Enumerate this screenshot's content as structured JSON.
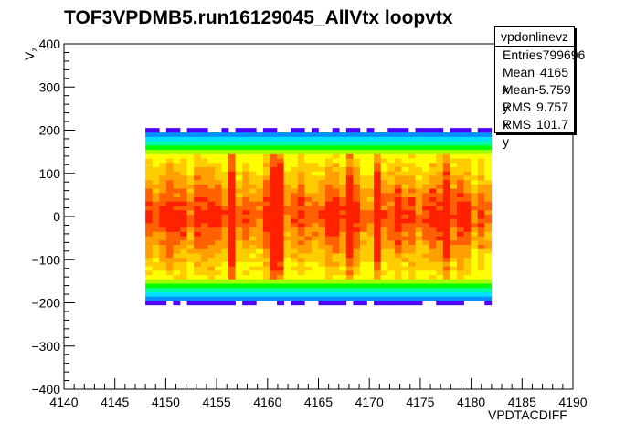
{
  "chart_data": {
    "type": "heatmap",
    "title": "TOF3VPDMB5.run16129045_AllVtx loopvtx",
    "xlabel": "VPDTACDIFF",
    "ylabel_main": "V",
    "ylabel_sub": "z",
    "xlim": [
      4140,
      4190
    ],
    "ylim": [
      -400,
      400
    ],
    "xticks": [
      "4140",
      "4145",
      "4150",
      "4155",
      "4160",
      "4165",
      "4170",
      "4175",
      "4180",
      "4185",
      "4190"
    ],
    "yticks": [
      "400",
      "300",
      "200",
      "100",
      "0",
      "−100",
      "−200",
      "−300",
      "−400"
    ],
    "occupied_x_range": [
      4148,
      4182
    ],
    "occupied_y_range": [
      -205,
      205
    ],
    "color_scale": [
      "#5000ff",
      "#0090ff",
      "#00e0ff",
      "#00ffa0",
      "#00ff00",
      "#a0ff00",
      "#ffff00",
      "#ffcc00",
      "#ffa000",
      "#ff6000",
      "#ff2000"
    ],
    "hot_columns_x": [
      4156.7,
      4161,
      4168,
      4171,
      4177.5
    ],
    "stats": {
      "name": "vpdonlinevz",
      "entries_label": "Entries",
      "entries": "799696",
      "meanx_label": "Mean x",
      "meanx": "4165",
      "meany_label": "Mean y",
      "meany": "-5.759",
      "rmsx_label": "RMS x",
      "rmsx": "9.757",
      "rmsy_label": "RMS y",
      "rmsy": "101.7"
    }
  }
}
